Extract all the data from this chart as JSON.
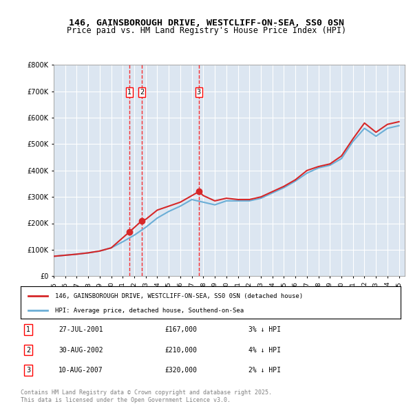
{
  "title_line1": "146, GAINSBOROUGH DRIVE, WESTCLIFF-ON-SEA, SS0 0SN",
  "title_line2": "Price paid vs. HM Land Registry's House Price Index (HPI)",
  "ylabel": "",
  "background_color": "#dce6f1",
  "plot_bg_color": "#dce6f1",
  "red_line_label": "146, GAINSBOROUGH DRIVE, WESTCLIFF-ON-SEA, SS0 0SN (detached house)",
  "blue_line_label": "HPI: Average price, detached house, Southend-on-Sea",
  "transactions": [
    {
      "num": 1,
      "date": "27-JUL-2001",
      "price": 167000,
      "pct": "3%",
      "dir": "↓",
      "year": 2001.57
    },
    {
      "num": 2,
      "date": "30-AUG-2002",
      "price": 210000,
      "pct": "4%",
      "dir": "↓",
      "year": 2002.66
    },
    {
      "num": 3,
      "date": "10-AUG-2007",
      "price": 320000,
      "pct": "2%",
      "dir": "↓",
      "year": 2007.61
    }
  ],
  "footer": "Contains HM Land Registry data © Crown copyright and database right 2025.\nThis data is licensed under the Open Government Licence v3.0.",
  "ylim": [
    0,
    800000
  ],
  "yticks": [
    0,
    100000,
    200000,
    300000,
    400000,
    500000,
    600000,
    700000,
    800000
  ],
  "hpi_years": [
    1995,
    1996,
    1997,
    1998,
    1999,
    2000,
    2001,
    2002,
    2003,
    2004,
    2005,
    2006,
    2007,
    2008,
    2009,
    2010,
    2011,
    2012,
    2013,
    2014,
    2015,
    2016,
    2017,
    2018,
    2019,
    2020,
    2021,
    2022,
    2023,
    2024,
    2025
  ],
  "hpi_values": [
    75000,
    79000,
    83000,
    88000,
    95000,
    107000,
    130000,
    155000,
    185000,
    220000,
    245000,
    265000,
    290000,
    280000,
    270000,
    285000,
    285000,
    285000,
    295000,
    315000,
    335000,
    360000,
    390000,
    410000,
    420000,
    445000,
    510000,
    560000,
    530000,
    560000,
    570000
  ],
  "red_years": [
    1995,
    1996,
    1997,
    1998,
    1999,
    2000,
    2001.57,
    2002.66,
    2003,
    2004,
    2005,
    2006,
    2007.61,
    2008,
    2009,
    2010,
    2011,
    2012,
    2013,
    2014,
    2015,
    2016,
    2017,
    2018,
    2019,
    2020,
    2021,
    2022,
    2023,
    2024,
    2025
  ],
  "red_values": [
    75000,
    79000,
    83000,
    88000,
    95000,
    107000,
    167000,
    210000,
    215000,
    250000,
    265000,
    280000,
    320000,
    305000,
    285000,
    295000,
    290000,
    290000,
    300000,
    320000,
    340000,
    365000,
    400000,
    415000,
    425000,
    455000,
    520000,
    580000,
    545000,
    575000,
    585000
  ]
}
